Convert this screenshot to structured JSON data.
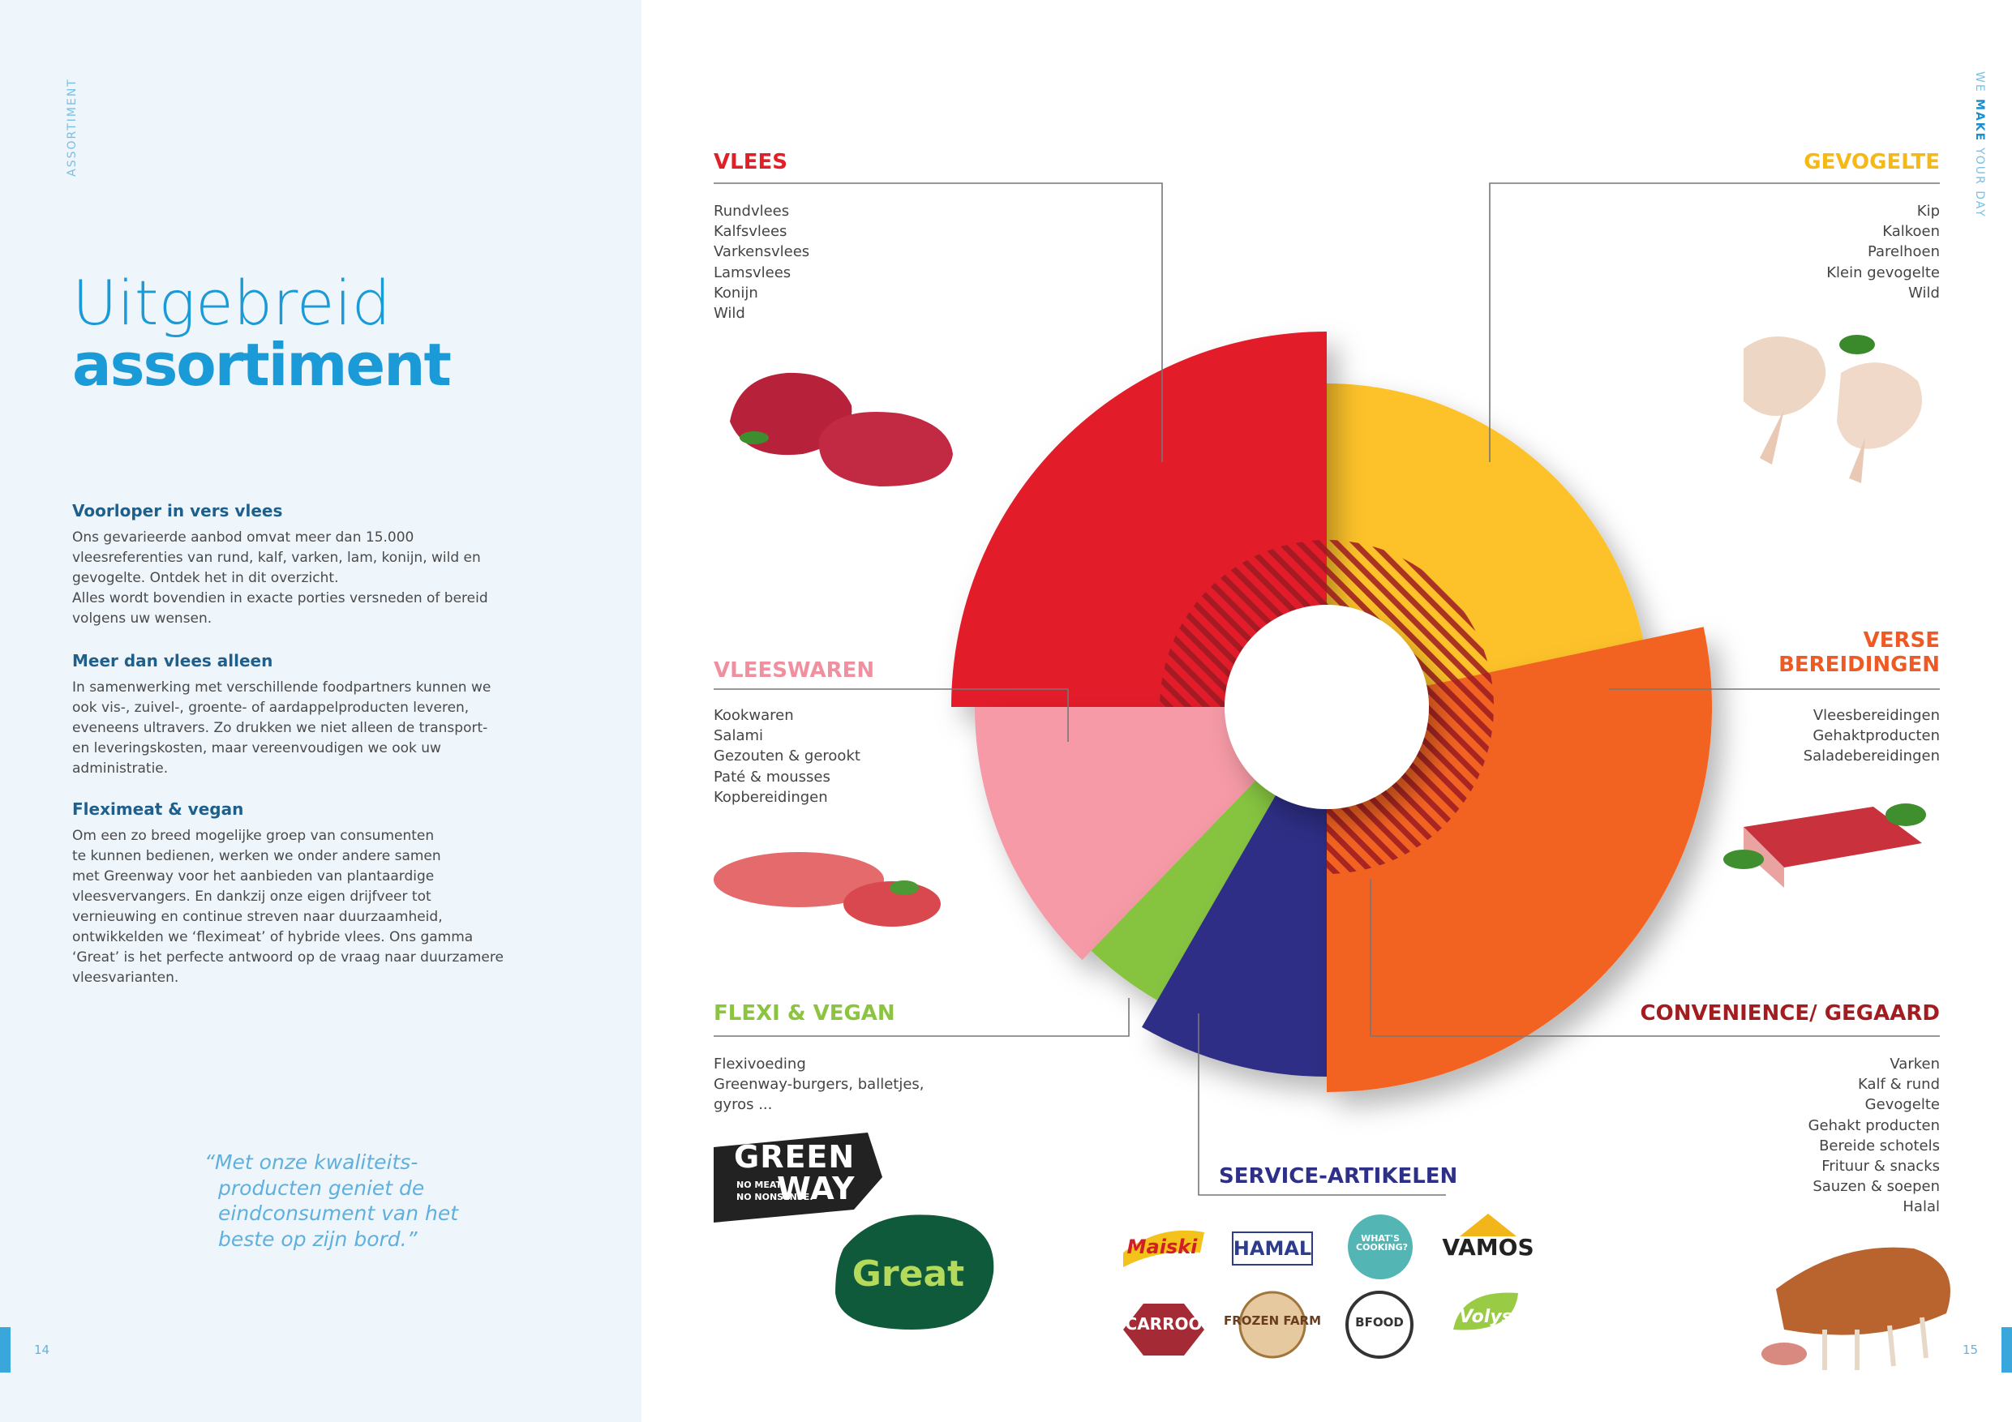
{
  "left": {
    "side_label": "ASSORTIMENT",
    "title": [
      "Uitgebreid",
      "assortiment"
    ],
    "sections": [
      {
        "heading": "Voorloper in vers vlees",
        "lines": [
          "Ons gevarieerde aanbod omvat meer dan 15.000",
          "vleesreferenties van rund, kalf, varken, lam, konijn, wild en",
          "gevogelte. Ontdek het in dit overzicht.",
          "Alles wordt bovendien in exacte porties versneden of bereid",
          "volgens uw wensen."
        ]
      },
      {
        "heading": "Meer dan vlees alleen",
        "lines": [
          "In samenwerking met verschillende foodpartners kunnen we",
          "ook vis-, zuivel-, groente- of aardappelproducten leveren,",
          "eveneens ultravers. Zo drukken we niet alleen de transport-",
          "en leveringskosten, maar vereenvoudigen we ook uw",
          "administratie."
        ]
      },
      {
        "heading": "Fleximeat & vegan",
        "lines": [
          "Om een zo breed mogelijke groep van consumenten",
          "te kunnen bedienen, werken we onder andere samen",
          "met Greenway voor het aanbieden van plantaardige",
          "vleesvervangers. En dankzij onze eigen drijfveer tot",
          "vernieuwing en continue streven naar duurzaamheid,",
          "ontwikkelden we ‘fleximeat’ of hybride vlees. Ons gamma",
          "‘Great’ is het perfecte antwoord op de vraag naar duurzamere",
          "vleesvarianten."
        ]
      }
    ],
    "quote": [
      "“Met onze kwaliteits-",
      "producten geniet de",
      "eindconsument van het",
      "beste op zijn bord.”"
    ],
    "page_number": "14"
  },
  "right": {
    "side_label": [
      "WE",
      "MAKE",
      "YOUR DAY"
    ],
    "page_number": "15",
    "categories": [
      {
        "title": [
          "VLEES"
        ],
        "items": [
          "Rundvlees",
          "Kalfsvlees",
          "Varkensvlees",
          "Lamsvlees",
          "Konijn",
          "Wild"
        ]
      },
      {
        "title": [
          "GEVOGELTE"
        ],
        "items": [
          "Kip",
          "Kalkoen",
          "Parelhoen",
          "Klein gevogelte",
          "Wild"
        ]
      },
      {
        "title": [
          "VLEESWAREN"
        ],
        "items": [
          "Kookwaren",
          "Salami",
          "Gezouten & gerookt",
          "Paté & mousses",
          "Kopbereidingen"
        ]
      },
      {
        "title": [
          "VERSE",
          "BEREIDINGEN"
        ],
        "items": [
          "Vleesbereidingen",
          "Gehaktproducten",
          "Saladebereidingen"
        ]
      },
      {
        "title": [
          "FLEXI & VEGAN"
        ],
        "items": [
          "Flexivoeding",
          "Greenway-burgers, balletjes,",
          "gyros ..."
        ]
      },
      {
        "title": [
          "CONVENIENCE/ GEGAARD"
        ],
        "items": [
          "Varken",
          "Kalf & rund",
          "Gevogelte",
          "Gehakt producten",
          "Bereide schotels",
          "Frituur & snacks",
          "Sauzen & soepen",
          "Halal"
        ]
      },
      {
        "title": [
          "SERVICE-ARTIKELEN"
        ],
        "items": []
      }
    ],
    "logos": {
      "greenway": [
        "GREEN",
        "WAY",
        "NO MEAT.",
        "NO NONSENSE."
      ],
      "great": "Great",
      "brands": [
        "Maiski",
        "HAMAL",
        "WHAT'S COOKING?",
        "VAMOS",
        "CARROO",
        "FROZEN FARM",
        "BFOOD",
        "Volys"
      ]
    }
  }
}
